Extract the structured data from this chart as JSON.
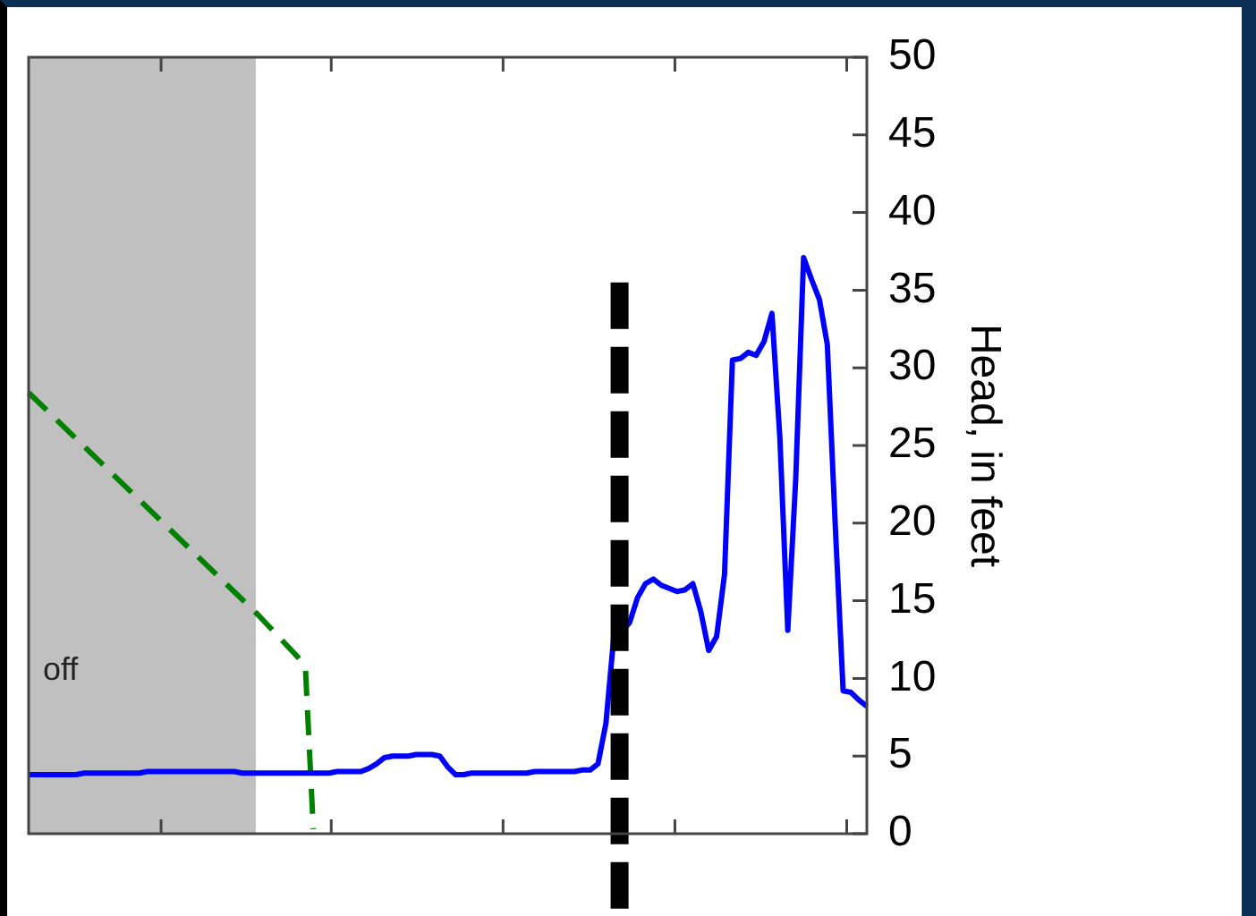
{
  "chart_data": {
    "type": "line",
    "ylabel": "Head, in feet",
    "categories": [
      null,
      null,
      null,
      null,
      null,
      null,
      null,
      null,
      null,
      null,
      null,
      null,
      null,
      null,
      null,
      null,
      null,
      null,
      null,
      null,
      null,
      null,
      null,
      null,
      null,
      null,
      null,
      null,
      null,
      null,
      null,
      null,
      null,
      null,
      null,
      null,
      null,
      null,
      null,
      null,
      null,
      null,
      null,
      null,
      null,
      null,
      null,
      null,
      null,
      null,
      null,
      null,
      null,
      null,
      null,
      null,
      null,
      null,
      null,
      null,
      null,
      null,
      null,
      null,
      null,
      null,
      null,
      null,
      null,
      null,
      null,
      null,
      null,
      null,
      null,
      null,
      null,
      null,
      null,
      null,
      null,
      null,
      null,
      null,
      null,
      null,
      null,
      null,
      null,
      null,
      null,
      null,
      null,
      null,
      null,
      null,
      null,
      null,
      null,
      null,
      null,
      null,
      null,
      null,
      null,
      null,
      null
    ],
    "ylim": [
      0,
      50
    ],
    "yticks": [
      0,
      5,
      10,
      15,
      20,
      25,
      30,
      35,
      40,
      45,
      50
    ],
    "tick_labels": "y",
    "marker": "none",
    "series": [
      {
        "color": "#0000ff",
        "line_style": "solid",
        "values": [
          3.8,
          3.8,
          3.8,
          3.8,
          3.8,
          3.8,
          3.8,
          3.9,
          3.9,
          3.9,
          3.9,
          3.9,
          3.9,
          3.9,
          3.9,
          4.0,
          4.0,
          4.0,
          4.0,
          4.0,
          4.0,
          4.0,
          4.0,
          4.0,
          4.0,
          4.0,
          4.0,
          3.9,
          3.9,
          3.9,
          3.9,
          3.9,
          3.9,
          3.9,
          3.9,
          3.9,
          3.9,
          3.9,
          3.9,
          4.0,
          4.0,
          4.0,
          4.0,
          4.2,
          4.5,
          4.9,
          5.0,
          5.0,
          5.0,
          5.1,
          5.1,
          5.1,
          5.0,
          4.3,
          3.8,
          3.8,
          3.9,
          3.9,
          3.9,
          3.9,
          3.9,
          3.9,
          3.9,
          3.9,
          4.0,
          4.0,
          4.0,
          4.0,
          4.0,
          4.0,
          4.1,
          4.1,
          4.5,
          7.1,
          12.7,
          13.0,
          13.6,
          15.2,
          16.1,
          16.4,
          16.0,
          15.8,
          15.6,
          15.7,
          16.1,
          14.3,
          11.8,
          12.7,
          16.7,
          30.5,
          30.6,
          31.0,
          30.8,
          31.7,
          33.5,
          25.5,
          13.1,
          22.8,
          37.1,
          35.7,
          34.4,
          31.5,
          19.9,
          9.2,
          9.1,
          8.6,
          8.2
        ]
      },
      {
        "color": "#008000",
        "line_style": "dashed",
        "values": [
          28.4,
          null,
          null,
          null,
          null,
          null,
          null,
          null,
          null,
          null,
          null,
          null,
          null,
          null,
          null,
          null,
          null,
          null,
          null,
          null,
          null,
          null,
          null,
          null,
          null,
          null,
          null,
          null,
          null,
          14.1,
          null,
          null,
          null,
          null,
          11.4,
          10.7,
          0.3,
          null,
          null,
          null,
          null,
          null,
          null,
          null,
          null,
          null,
          null,
          null,
          null,
          null,
          null,
          null,
          null,
          null,
          null,
          null,
          null,
          null,
          null,
          null,
          null,
          null,
          null,
          null,
          null,
          null,
          null,
          null,
          null,
          null,
          null,
          null,
          null,
          null,
          null,
          null,
          null,
          null,
          null,
          null,
          null,
          null,
          null,
          null,
          null,
          null,
          null,
          null,
          null,
          null,
          null,
          null,
          null,
          null,
          null,
          null,
          null,
          null,
          null,
          null,
          null,
          null,
          null,
          null,
          null,
          null,
          null
        ]
      }
    ],
    "annotations": [
      "off"
    ]
  }
}
